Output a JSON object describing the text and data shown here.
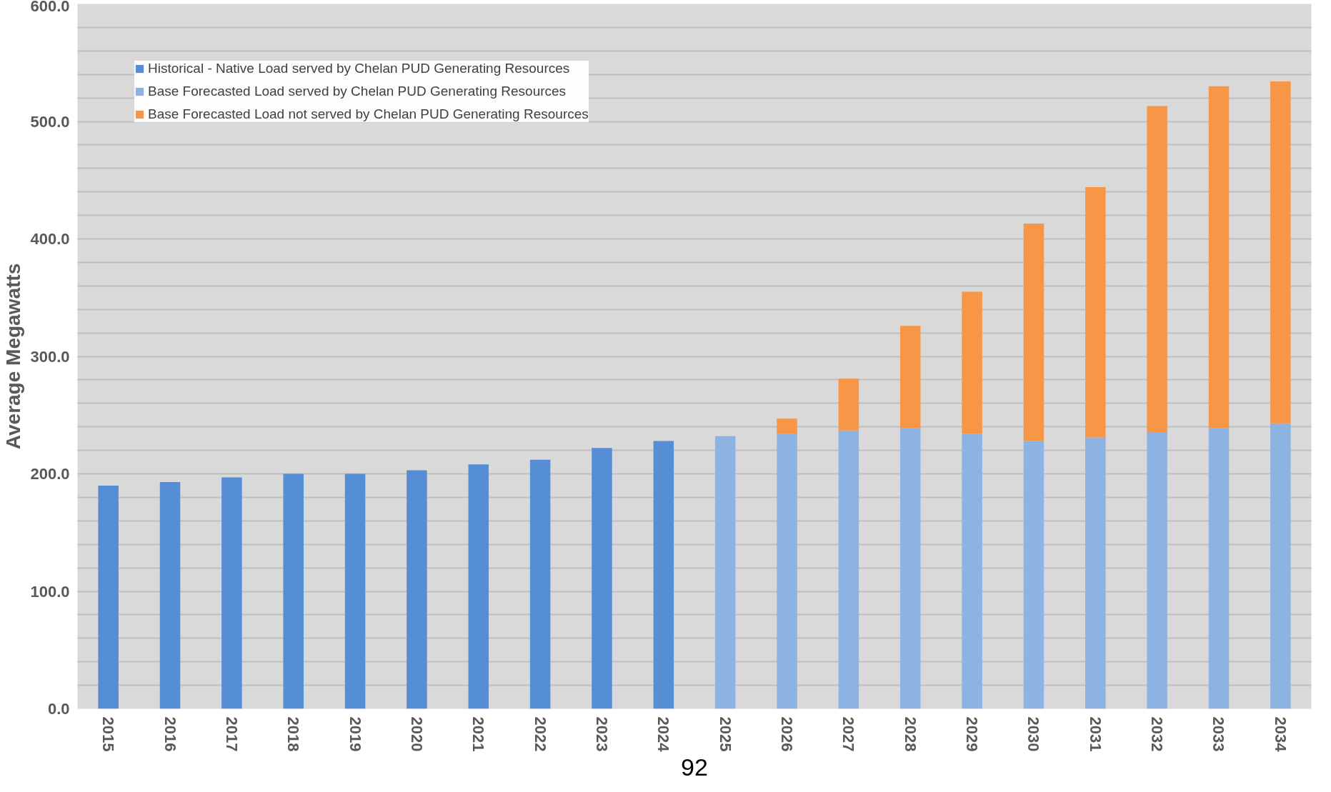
{
  "chart_data": {
    "type": "bar",
    "stacked": true,
    "ylabel": "Average Megawatts",
    "categories": [
      "2015",
      "2016",
      "2017",
      "2018",
      "2019",
      "2020",
      "2021",
      "2022",
      "2023",
      "2024",
      "2025",
      "2026",
      "2027",
      "2028",
      "2029",
      "2030",
      "2031",
      "2032",
      "2033",
      "2034"
    ],
    "series": [
      {
        "name": "Historical - Native Load served by Chelan PUD Generating Resources",
        "color": "#558ed5",
        "values": [
          190,
          193,
          197,
          200,
          200,
          203,
          208,
          212,
          222,
          228,
          null,
          null,
          null,
          null,
          null,
          null,
          null,
          null,
          null,
          null
        ]
      },
      {
        "name": "Base Forecasted Load served by Chelan PUD Generating Resources",
        "color": "#8db3e2",
        "values": [
          null,
          null,
          null,
          null,
          null,
          null,
          null,
          null,
          null,
          null,
          232,
          234,
          237,
          239,
          234,
          228,
          231,
          235,
          239,
          243
        ]
      },
      {
        "name": "Base Forecasted Load not served by Chelan PUD Generating Resources",
        "color": "#f79646",
        "values": [
          null,
          null,
          null,
          null,
          null,
          null,
          null,
          null,
          null,
          null,
          null,
          13,
          44,
          87,
          121,
          185,
          213,
          278,
          291,
          291
        ]
      }
    ],
    "ylim": [
      0,
      600
    ],
    "yticks": [
      {
        "value": 0,
        "label": "0.0"
      },
      {
        "value": 20,
        "label": null
      },
      {
        "value": 40,
        "label": null
      },
      {
        "value": 60,
        "label": null
      },
      {
        "value": 80,
        "label": null
      },
      {
        "value": 100,
        "label": "100.0"
      },
      {
        "value": 120,
        "label": null
      },
      {
        "value": 140,
        "label": null
      },
      {
        "value": 160,
        "label": null
      },
      {
        "value": 180,
        "label": null
      },
      {
        "value": 200,
        "label": "200.0"
      },
      {
        "value": 220,
        "label": null
      },
      {
        "value": 240,
        "label": null
      },
      {
        "value": 260,
        "label": null
      },
      {
        "value": 280,
        "label": null
      },
      {
        "value": 300,
        "label": "300.0"
      },
      {
        "value": 320,
        "label": null
      },
      {
        "value": 340,
        "label": null
      },
      {
        "value": 360,
        "label": null
      },
      {
        "value": 380,
        "label": null
      },
      {
        "value": 400,
        "label": "400.0"
      },
      {
        "value": 420,
        "label": null
      },
      {
        "value": 440,
        "label": null
      },
      {
        "value": 460,
        "label": null
      },
      {
        "value": 480,
        "label": null
      },
      {
        "value": 500,
        "label": "500.0"
      },
      {
        "value": 520,
        "label": null
      },
      {
        "value": 540,
        "label": null
      },
      {
        "value": 560,
        "label": null
      },
      {
        "value": 580,
        "label": null
      },
      {
        "value": 600,
        "label": "600.0"
      }
    ],
    "grid": "y",
    "legend": "top left",
    "annotations": [
      "92"
    ]
  }
}
